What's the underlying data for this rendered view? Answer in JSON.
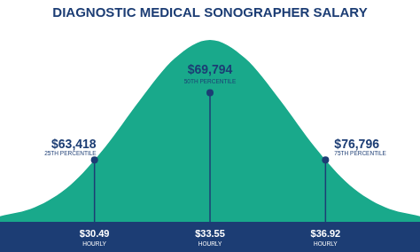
{
  "chart_data": {
    "type": "area",
    "title": "DIAGNOSTIC MEDICAL SONOGRAPHER SALARY",
    "x": [
      -3,
      -2.5,
      -2,
      -1.5,
      -1,
      -0.5,
      0,
      0.5,
      1,
      1.5,
      2,
      2.5,
      3
    ],
    "values": [
      3,
      8,
      20,
      41,
      67,
      90,
      100,
      90,
      67,
      41,
      20,
      8,
      3
    ],
    "color": "#19a98b",
    "xlim": [
      -3,
      3
    ],
    "ylim": [
      0,
      100
    ],
    "grid": false,
    "tick_labels": false,
    "markers": [
      {
        "x": -1.65,
        "y": 34,
        "label": "$63,418",
        "sublabel": "25TH PERCENTILE",
        "hourly": "$30.49",
        "hourly_caption": "HOURLY"
      },
      {
        "x": 0,
        "y": 71,
        "label": "$69,794",
        "sublabel": "50TH PERCENTILE",
        "hourly": "$33.55",
        "hourly_caption": "HOURLY"
      },
      {
        "x": 1.65,
        "y": 34,
        "label": "$76,796",
        "sublabel": "75TH PERCENTILE",
        "hourly": "$36.92",
        "hourly_caption": "HOURLY"
      }
    ]
  }
}
